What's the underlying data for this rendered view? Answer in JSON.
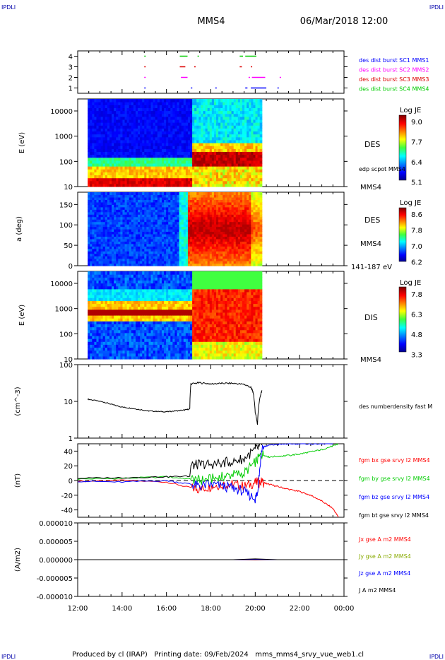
{
  "corner_labels": {
    "top_left": "IPDLI",
    "top_right": "IPDLI",
    "bottom_left": "IPDLI",
    "bottom_right": "IPDLI"
  },
  "header": {
    "spacecraft": "MMS4",
    "datetime": "06/Mar/2018 12:00"
  },
  "footer": {
    "text": "Produced by cl (IRAP)   Printing date: 09/Feb/2024   mms_mms4_srvy_vue_web1.cl"
  },
  "time_axis": {
    "start": "12:00",
    "end": "00:00",
    "tick_labels": [
      "12:00",
      "14:00",
      "16:00",
      "18:00",
      "20:00",
      "22:00",
      "00:00"
    ]
  },
  "colors": {
    "mms1": "#0000ff",
    "mms2": "#ff00ff",
    "mms3": "#dd0000",
    "mms4": "#00cc00",
    "x_component": "#ff0000",
    "y_component": "#00cc00",
    "z_component": "#0000ff",
    "total": "#000000"
  },
  "chart_data": [
    {
      "type": "scatter",
      "panel": "burst_availability",
      "y_ticks": [
        "1",
        "2",
        "3",
        "4"
      ],
      "ylim": [
        0.5,
        4.5
      ],
      "legend": [
        {
          "label": "des dist burst SC1 MMS1",
          "color_key": "mms1"
        },
        {
          "label": "des dist burst SC2 MMS2",
          "color_key": "mms2"
        },
        {
          "label": "des dist burst SC3 MMS3",
          "color_key": "mms3"
        },
        {
          "label": "des dist burst SC4 MMS4",
          "color_key": "mms4"
        }
      ],
      "series": [
        {
          "level": 4,
          "color_key": "mms4",
          "segments": [
            [
              15.0,
              15.05
            ],
            [
              16.6,
              16.95
            ],
            [
              17.4,
              17.45
            ],
            [
              19.3,
              19.45
            ],
            [
              19.55,
              20.05
            ]
          ]
        },
        {
          "level": 3,
          "color_key": "mms3",
          "segments": [
            [
              15.0,
              15.05
            ],
            [
              16.6,
              16.85
            ],
            [
              17.25,
              17.3
            ],
            [
              19.3,
              19.4
            ],
            [
              19.8,
              19.85
            ]
          ]
        },
        {
          "level": 2,
          "color_key": "mms2",
          "segments": [
            [
              15.0,
              15.05
            ],
            [
              16.65,
              16.95
            ],
            [
              19.7,
              19.75
            ],
            [
              19.85,
              20.45
            ],
            [
              21.1,
              21.15
            ]
          ]
        },
        {
          "level": 1,
          "color_key": "mms1",
          "segments": [
            [
              15.0,
              15.05
            ],
            [
              17.1,
              17.15
            ],
            [
              18.2,
              18.25
            ],
            [
              19.55,
              19.65
            ],
            [
              19.8,
              20.5
            ],
            [
              21.0,
              21.05
            ]
          ]
        }
      ]
    },
    {
      "type": "heatmap",
      "panel": "des_energy_spectrogram",
      "ylabel": "E (eV)",
      "y_scale": "log",
      "y_ticks": [
        "10",
        "100",
        "1000",
        "10000"
      ],
      "ylim": [
        10,
        30000
      ],
      "data_range_hours": [
        12.45,
        20.3
      ],
      "label": "DES",
      "side_labels": [
        "edp scpot MMS4",
        "MMS4"
      ],
      "colorbar": {
        "title": "Log JE",
        "ticks": [
          "9.0",
          "7.7",
          "6.4",
          "5.1"
        ],
        "range": [
          5.1,
          9.0
        ]
      }
    },
    {
      "type": "heatmap",
      "panel": "des_pitch_angle",
      "ylabel": "a (deg)",
      "y_ticks": [
        "0",
        "50",
        "100",
        "150"
      ],
      "ylim": [
        0,
        180
      ],
      "data_range_hours": [
        12.45,
        20.3
      ],
      "label": "DES",
      "side_labels": [
        "MMS4",
        "141-187 eV"
      ],
      "colorbar": {
        "title": "Log JE",
        "ticks": [
          "8.6",
          "7.8",
          "7.0",
          "6.2"
        ],
        "range": [
          6.2,
          8.6
        ]
      }
    },
    {
      "type": "heatmap",
      "panel": "dis_energy_spectrogram",
      "ylabel": "E (eV)",
      "y_scale": "log",
      "y_ticks": [
        "10",
        "100",
        "1000",
        "10000"
      ],
      "ylim": [
        10,
        30000
      ],
      "data_range_hours": [
        12.45,
        20.3
      ],
      "label": "DIS",
      "side_labels": [
        "MMS4"
      ],
      "colorbar": {
        "title": "Log JE",
        "ticks": [
          "7.8",
          "6.3",
          "4.8",
          "3.3"
        ],
        "range": [
          3.3,
          7.8
        ]
      }
    },
    {
      "type": "line",
      "panel": "density",
      "ylabel": "(cm^-3)",
      "y_scale": "log",
      "y_ticks": [
        "1",
        "10",
        "100"
      ],
      "ylim": [
        1,
        100
      ],
      "series": [
        {
          "name": "des numberdensity fast M",
          "color_key": "total",
          "x": [
            12.45,
            12.8,
            13.2,
            13.6,
            14.0,
            14.4,
            14.8,
            15.2,
            15.6,
            16.0,
            16.4,
            16.8,
            17.05,
            17.1,
            17.5,
            18.0,
            18.5,
            19.0,
            19.5,
            19.8,
            19.9,
            20.0,
            20.1,
            20.3
          ],
          "y": [
            11.5,
            10.5,
            9.5,
            8.0,
            7.0,
            6.5,
            6.0,
            5.5,
            5.3,
            5.2,
            5.5,
            5.8,
            6.2,
            30,
            32,
            30,
            31,
            31,
            29,
            24,
            18,
            5,
            2.3,
            20
          ]
        }
      ]
    },
    {
      "type": "line",
      "panel": "magnetic_field",
      "ylabel": "(nT)",
      "y_ticks": [
        "-40",
        "-20",
        "0",
        "20",
        "40"
      ],
      "ylim": [
        -50,
        50
      ],
      "zero_line": true,
      "series": [
        {
          "name": "fgm bx gse srvy l2 MMS4",
          "color_key": "x_component",
          "x": [
            12.0,
            14.0,
            16.0,
            17.1,
            17.5,
            18.0,
            18.5,
            19.0,
            19.5,
            20.0,
            20.3,
            20.6,
            21.0,
            21.5,
            22.0,
            22.5,
            23.0,
            23.5,
            23.75
          ],
          "y": [
            -1,
            0,
            -2,
            -10,
            -12,
            -8,
            -5,
            -5,
            -8,
            -3,
            -2,
            -5,
            -8,
            -12,
            -15,
            -20,
            -28,
            -38,
            -50
          ]
        },
        {
          "name": "fgm by gse srvy l2 MMS4",
          "color_key": "y_component",
          "x": [
            12.0,
            14.0,
            16.0,
            17.1,
            17.5,
            18.0,
            18.5,
            19.0,
            19.5,
            20.0,
            20.3,
            20.6,
            21.0,
            21.5,
            22.0,
            22.5,
            23.0,
            23.5,
            23.75
          ],
          "y": [
            2,
            3,
            5,
            2,
            0,
            2,
            5,
            8,
            10,
            25,
            36,
            32,
            33,
            34,
            36,
            39,
            42,
            47,
            50
          ]
        },
        {
          "name": "fgm bz gse srvy l2 MMS4",
          "color_key": "z_component",
          "x": [
            12.0,
            14.0,
            16.0,
            17.1,
            17.5,
            18.0,
            18.5,
            19.0,
            19.5,
            20.0,
            20.1,
            20.3,
            20.6,
            21.0,
            21.5,
            22.0,
            22.5,
            23.0,
            23.5
          ],
          "y": [
            -1,
            -2,
            0,
            -5,
            -8,
            -5,
            -8,
            -10,
            -15,
            -25,
            -15,
            45,
            48,
            49,
            50,
            50,
            50,
            50,
            50
          ]
        },
        {
          "name": "fgm bt gse srvy l2 MMS4",
          "color_key": "total",
          "x": [
            12.0,
            14.0,
            16.0,
            17.05,
            17.1,
            17.5,
            18.0,
            18.5,
            19.0,
            19.5,
            20.0,
            20.3
          ],
          "y": [
            3,
            4,
            5,
            6,
            20,
            22,
            22,
            24,
            26,
            30,
            42,
            48
          ]
        }
      ]
    },
    {
      "type": "line",
      "panel": "current_density",
      "ylabel": "(A/m2)",
      "y_ticks": [
        "0.000010",
        "0.000005",
        "0.000000",
        "-0.000005",
        "-0.000010"
      ],
      "ylim": [
        -1e-05,
        1e-05
      ],
      "series": [
        {
          "name": "Jx gse A m2 MMS4",
          "color_key": "x_component",
          "x": [
            12.0,
            24.0
          ],
          "y": [
            0,
            0
          ]
        },
        {
          "name": "Jy gse A m2 MMS4",
          "color_key": "y_component",
          "x": [
            12.0,
            24.0
          ],
          "y": [
            0,
            0
          ]
        },
        {
          "name": "Jz gse A m2 MMS4",
          "color_key": "z_component",
          "x": [
            12.0,
            24.0
          ],
          "y": [
            0,
            0
          ]
        },
        {
          "name": "J A m2 MMS4",
          "color_key": "total",
          "x": [
            12.0,
            24.0
          ],
          "y": [
            0,
            0
          ]
        }
      ]
    }
  ]
}
